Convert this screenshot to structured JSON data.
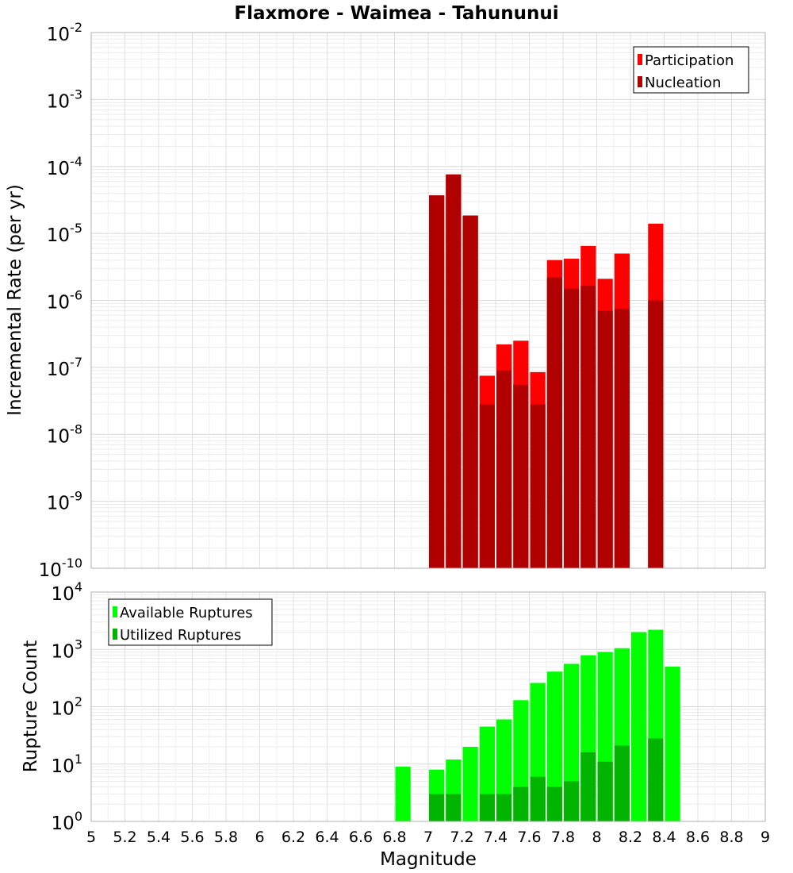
{
  "chart_data": [
    {
      "id": "top",
      "type": "bar",
      "title": "Flaxmore - Waimea - Tahununui",
      "ylabel": "Incremental Rate (per yr)",
      "xlabel": "",
      "xlim": [
        5,
        9
      ],
      "ylim_exp": [
        -10,
        -2
      ],
      "yscale": "log",
      "grid": true,
      "legend_position": "top-right",
      "bar_width": 0.1,
      "series": [
        {
          "name": "Participation",
          "color": "#ff0000",
          "x": [
            7.05,
            7.15,
            7.25,
            7.35,
            7.45,
            7.55,
            7.65,
            7.75,
            7.85,
            7.95,
            8.05,
            8.15,
            8.35
          ],
          "values": [
            3.7e-05,
            7.6e-05,
            1.85e-05,
            7.5e-08,
            2.2e-07,
            2.5e-07,
            8.5e-08,
            4e-06,
            4.2e-06,
            6.5e-06,
            2.1e-06,
            5e-06,
            1.4e-05
          ]
        },
        {
          "name": "Nucleation",
          "color": "#b00000",
          "x": [
            7.05,
            7.15,
            7.25,
            7.35,
            7.45,
            7.55,
            7.65,
            7.75,
            7.85,
            7.95,
            8.05,
            8.15,
            8.35
          ],
          "values": [
            3.7e-05,
            7.6e-05,
            1.85e-05,
            2.8e-08,
            9e-08,
            5.5e-08,
            2.8e-08,
            2.2e-06,
            1.5e-06,
            1.65e-06,
            7e-07,
            7.5e-07,
            1e-06
          ]
        }
      ],
      "ytick_base": "10",
      "yticks_exp": [
        "-10",
        "-9",
        "-8",
        "-7",
        "-6",
        "-5",
        "-4",
        "-3",
        "-2"
      ]
    },
    {
      "id": "bottom",
      "type": "bar",
      "title": "",
      "ylabel": "Rupture Count",
      "xlabel": "Magnitude",
      "xlim": [
        5,
        9
      ],
      "ylim_exp": [
        0,
        4
      ],
      "yscale": "log",
      "grid": true,
      "legend_position": "top-left",
      "bar_width": 0.1,
      "series": [
        {
          "name": "Available Ruptures",
          "color": "#00ff00",
          "x": [
            6.85,
            7.05,
            7.15,
            7.25,
            7.35,
            7.45,
            7.55,
            7.65,
            7.75,
            7.85,
            7.95,
            8.05,
            8.15,
            8.25,
            8.35,
            8.45
          ],
          "values": [
            9,
            8,
            12,
            20,
            45,
            60,
            130,
            260,
            410,
            560,
            790,
            900,
            1050,
            2000,
            2200,
            500
          ]
        },
        {
          "name": "Utilized Ruptures",
          "color": "#00b400",
          "x": [
            7.05,
            7.15,
            7.25,
            7.35,
            7.45,
            7.55,
            7.65,
            7.75,
            7.85,
            7.95,
            8.05,
            8.15,
            8.35
          ],
          "values": [
            3,
            3,
            1,
            3,
            3,
            4,
            6,
            4,
            5,
            16,
            11,
            21,
            28
          ]
        }
      ],
      "ytick_base": "10",
      "yticks_exp": [
        "0",
        "1",
        "2",
        "3",
        "4"
      ],
      "xtick_labels": [
        "5",
        "5.2",
        "5.4",
        "5.6",
        "5.8",
        "6",
        "6.2",
        "6.4",
        "6.6",
        "6.8",
        "7",
        "7.2",
        "7.4",
        "7.6",
        "7.8",
        "8",
        "8.2",
        "8.4",
        "8.6",
        "8.8",
        "9"
      ]
    }
  ]
}
